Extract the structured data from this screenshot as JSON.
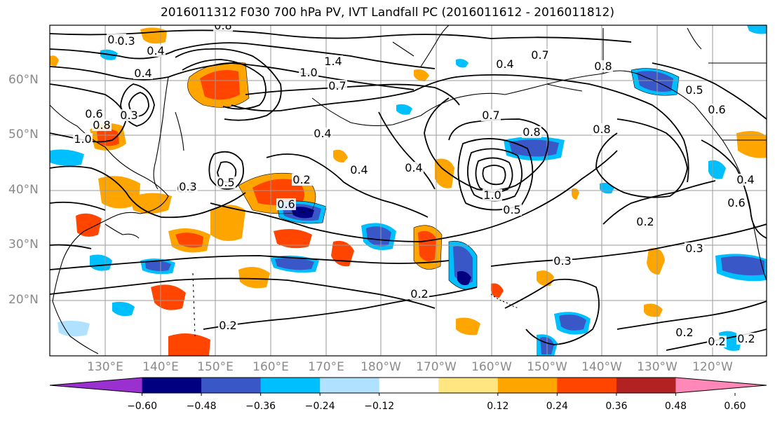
{
  "title": "2016011312 F030 700 hPa PV, IVT Landfall PC (2016011612 - 2016011812)",
  "lat_labels": [
    "60°N",
    "50°N",
    "40°N",
    "30°N",
    "20°N"
  ],
  "lon_labels": [
    "130°E",
    "140°E",
    "150°E",
    "160°E",
    "170°E",
    "180°W",
    "170°W",
    "160°W",
    "150°W",
    "140°W",
    "130°W",
    "120°W"
  ],
  "colorbar": {
    "ticks": [
      "−0.60",
      "−0.48",
      "−0.36",
      "−0.24",
      "−0.12",
      "0.12",
      "0.24",
      "0.36",
      "0.48",
      "0.60"
    ],
    "colors": [
      "#9b30d0",
      "#000080",
      "#3a57c8",
      "#00bfff",
      "#b0e2ff",
      "#ffffff",
      "#ffe680",
      "#ffa500",
      "#ff4500",
      "#b22222",
      "#ff88b8"
    ]
  },
  "contour_labels": [
    "0.5",
    "0.4",
    "1.0",
    "0.3",
    "0.6",
    "0.8",
    "0.8",
    "0.4",
    "1.4",
    "1.0",
    "0.7",
    "0.4",
    "0.5",
    "0.3",
    "0.4",
    "0.2",
    "0.4",
    "1.0",
    "0.5",
    "0.6",
    "0.8",
    "0.7",
    "0.8",
    "0.5",
    "0.6",
    "0.8",
    "0.3",
    "0.3",
    "0.2",
    "0.3",
    "0.2",
    "0.2",
    "0.3",
    "0.2",
    "0.2",
    "0.2",
    "0.2",
    "0.4",
    "0.6",
    "0.4",
    "0.7"
  ]
}
